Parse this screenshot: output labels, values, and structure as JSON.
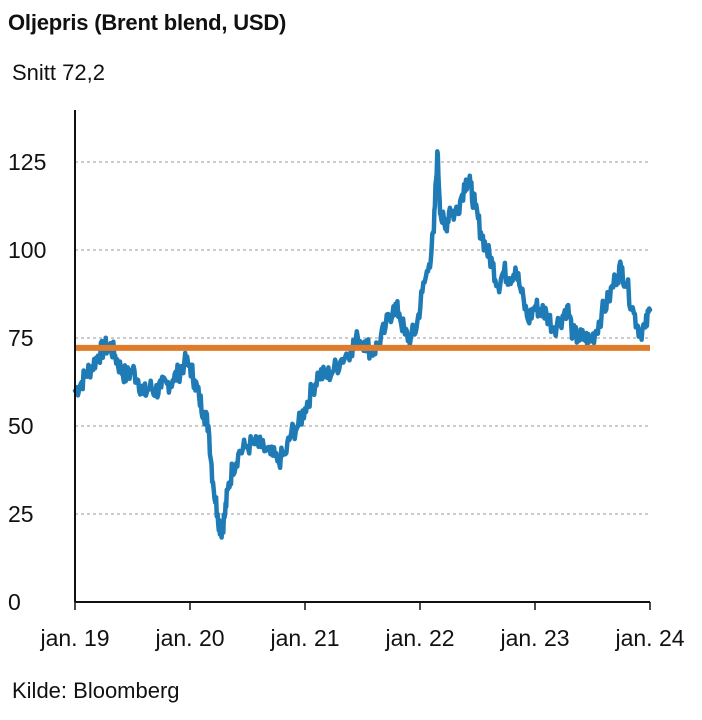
{
  "title": "Oljepris (Brent blend, USD)",
  "subtitle": "Snitt 72,2",
  "source": "Kilde: Bloomberg",
  "colors": {
    "price_line": "#1f7bb5",
    "average_line": "#e07b2a",
    "grid": "#9a9a9a",
    "axis": "#111111"
  },
  "chart_data": {
    "type": "line",
    "title": "Oljepris (Brent blend, USD)",
    "xlabel": "",
    "ylabel": "",
    "x_ticks": [
      {
        "label": "jan. 19",
        "year": 2019.0
      },
      {
        "label": "jan. 20",
        "year": 2020.0
      },
      {
        "label": "jan. 21",
        "year": 2021.0
      },
      {
        "label": "jan. 22",
        "year": 2022.0
      },
      {
        "label": "jan. 23",
        "year": 2023.0
      },
      {
        "label": "jan. 24",
        "year": 2024.0
      }
    ],
    "y_ticks": [
      0,
      25,
      50,
      75,
      100,
      125
    ],
    "xlim": [
      2019.0,
      2024.0
    ],
    "ylim": [
      0,
      140
    ],
    "grid": "horizontal dashed",
    "average": {
      "label": "Snitt 72,2",
      "value": 72.2
    },
    "series": [
      {
        "points": [
          [
            2019.0,
            60
          ],
          [
            2019.05,
            62
          ],
          [
            2019.1,
            65
          ],
          [
            2019.15,
            67
          ],
          [
            2019.2,
            70
          ],
          [
            2019.25,
            72
          ],
          [
            2019.3,
            73
          ],
          [
            2019.35,
            70
          ],
          [
            2019.4,
            66
          ],
          [
            2019.45,
            64
          ],
          [
            2019.5,
            66
          ],
          [
            2019.55,
            63
          ],
          [
            2019.6,
            59
          ],
          [
            2019.65,
            61
          ],
          [
            2019.7,
            60
          ],
          [
            2019.75,
            61
          ],
          [
            2019.8,
            62
          ],
          [
            2019.85,
            63
          ],
          [
            2019.9,
            65
          ],
          [
            2019.95,
            68
          ],
          [
            2020.0,
            67
          ],
          [
            2020.04,
            63
          ],
          [
            2020.08,
            58
          ],
          [
            2020.12,
            54
          ],
          [
            2020.16,
            50
          ],
          [
            2020.2,
            34
          ],
          [
            2020.24,
            25
          ],
          [
            2020.27,
            20
          ],
          [
            2020.3,
            24
          ],
          [
            2020.33,
            32
          ],
          [
            2020.37,
            38
          ],
          [
            2020.42,
            42
          ],
          [
            2020.48,
            44
          ],
          [
            2020.55,
            45
          ],
          [
            2020.62,
            44
          ],
          [
            2020.7,
            42
          ],
          [
            2020.76,
            40
          ],
          [
            2020.83,
            42
          ],
          [
            2020.88,
            48
          ],
          [
            2020.94,
            50
          ],
          [
            2021.0,
            55
          ],
          [
            2021.06,
            60
          ],
          [
            2021.12,
            65
          ],
          [
            2021.18,
            64
          ],
          [
            2021.25,
            66
          ],
          [
            2021.32,
            69
          ],
          [
            2021.4,
            72
          ],
          [
            2021.46,
            75
          ],
          [
            2021.52,
            74
          ],
          [
            2021.58,
            71
          ],
          [
            2021.64,
            73
          ],
          [
            2021.7,
            78
          ],
          [
            2021.77,
            84
          ],
          [
            2021.82,
            82
          ],
          [
            2021.87,
            76
          ],
          [
            2021.92,
            75
          ],
          [
            2021.97,
            78
          ],
          [
            2022.02,
            88
          ],
          [
            2022.08,
            96
          ],
          [
            2022.12,
            105
          ],
          [
            2022.15,
            128
          ],
          [
            2022.18,
            110
          ],
          [
            2022.22,
            106
          ],
          [
            2022.26,
            112
          ],
          [
            2022.3,
            110
          ],
          [
            2022.35,
            114
          ],
          [
            2022.4,
            120
          ],
          [
            2022.44,
            118
          ],
          [
            2022.48,
            112
          ],
          [
            2022.53,
            105
          ],
          [
            2022.58,
            100
          ],
          [
            2022.63,
            96
          ],
          [
            2022.68,
            90
          ],
          [
            2022.73,
            94
          ],
          [
            2022.78,
            92
          ],
          [
            2022.83,
            95
          ],
          [
            2022.88,
            88
          ],
          [
            2022.94,
            80
          ],
          [
            2023.0,
            84
          ],
          [
            2023.05,
            83
          ],
          [
            2023.1,
            82
          ],
          [
            2023.16,
            78
          ],
          [
            2023.22,
            80
          ],
          [
            2023.28,
            84
          ],
          [
            2023.33,
            76
          ],
          [
            2023.38,
            75
          ],
          [
            2023.43,
            75
          ],
          [
            2023.48,
            74
          ],
          [
            2023.53,
            77
          ],
          [
            2023.58,
            82
          ],
          [
            2023.64,
            86
          ],
          [
            2023.7,
            92
          ],
          [
            2023.75,
            95
          ],
          [
            2023.8,
            90
          ],
          [
            2023.86,
            82
          ],
          [
            2023.91,
            77
          ],
          [
            2023.96,
            78
          ],
          [
            2024.0,
            83
          ]
        ]
      }
    ]
  }
}
